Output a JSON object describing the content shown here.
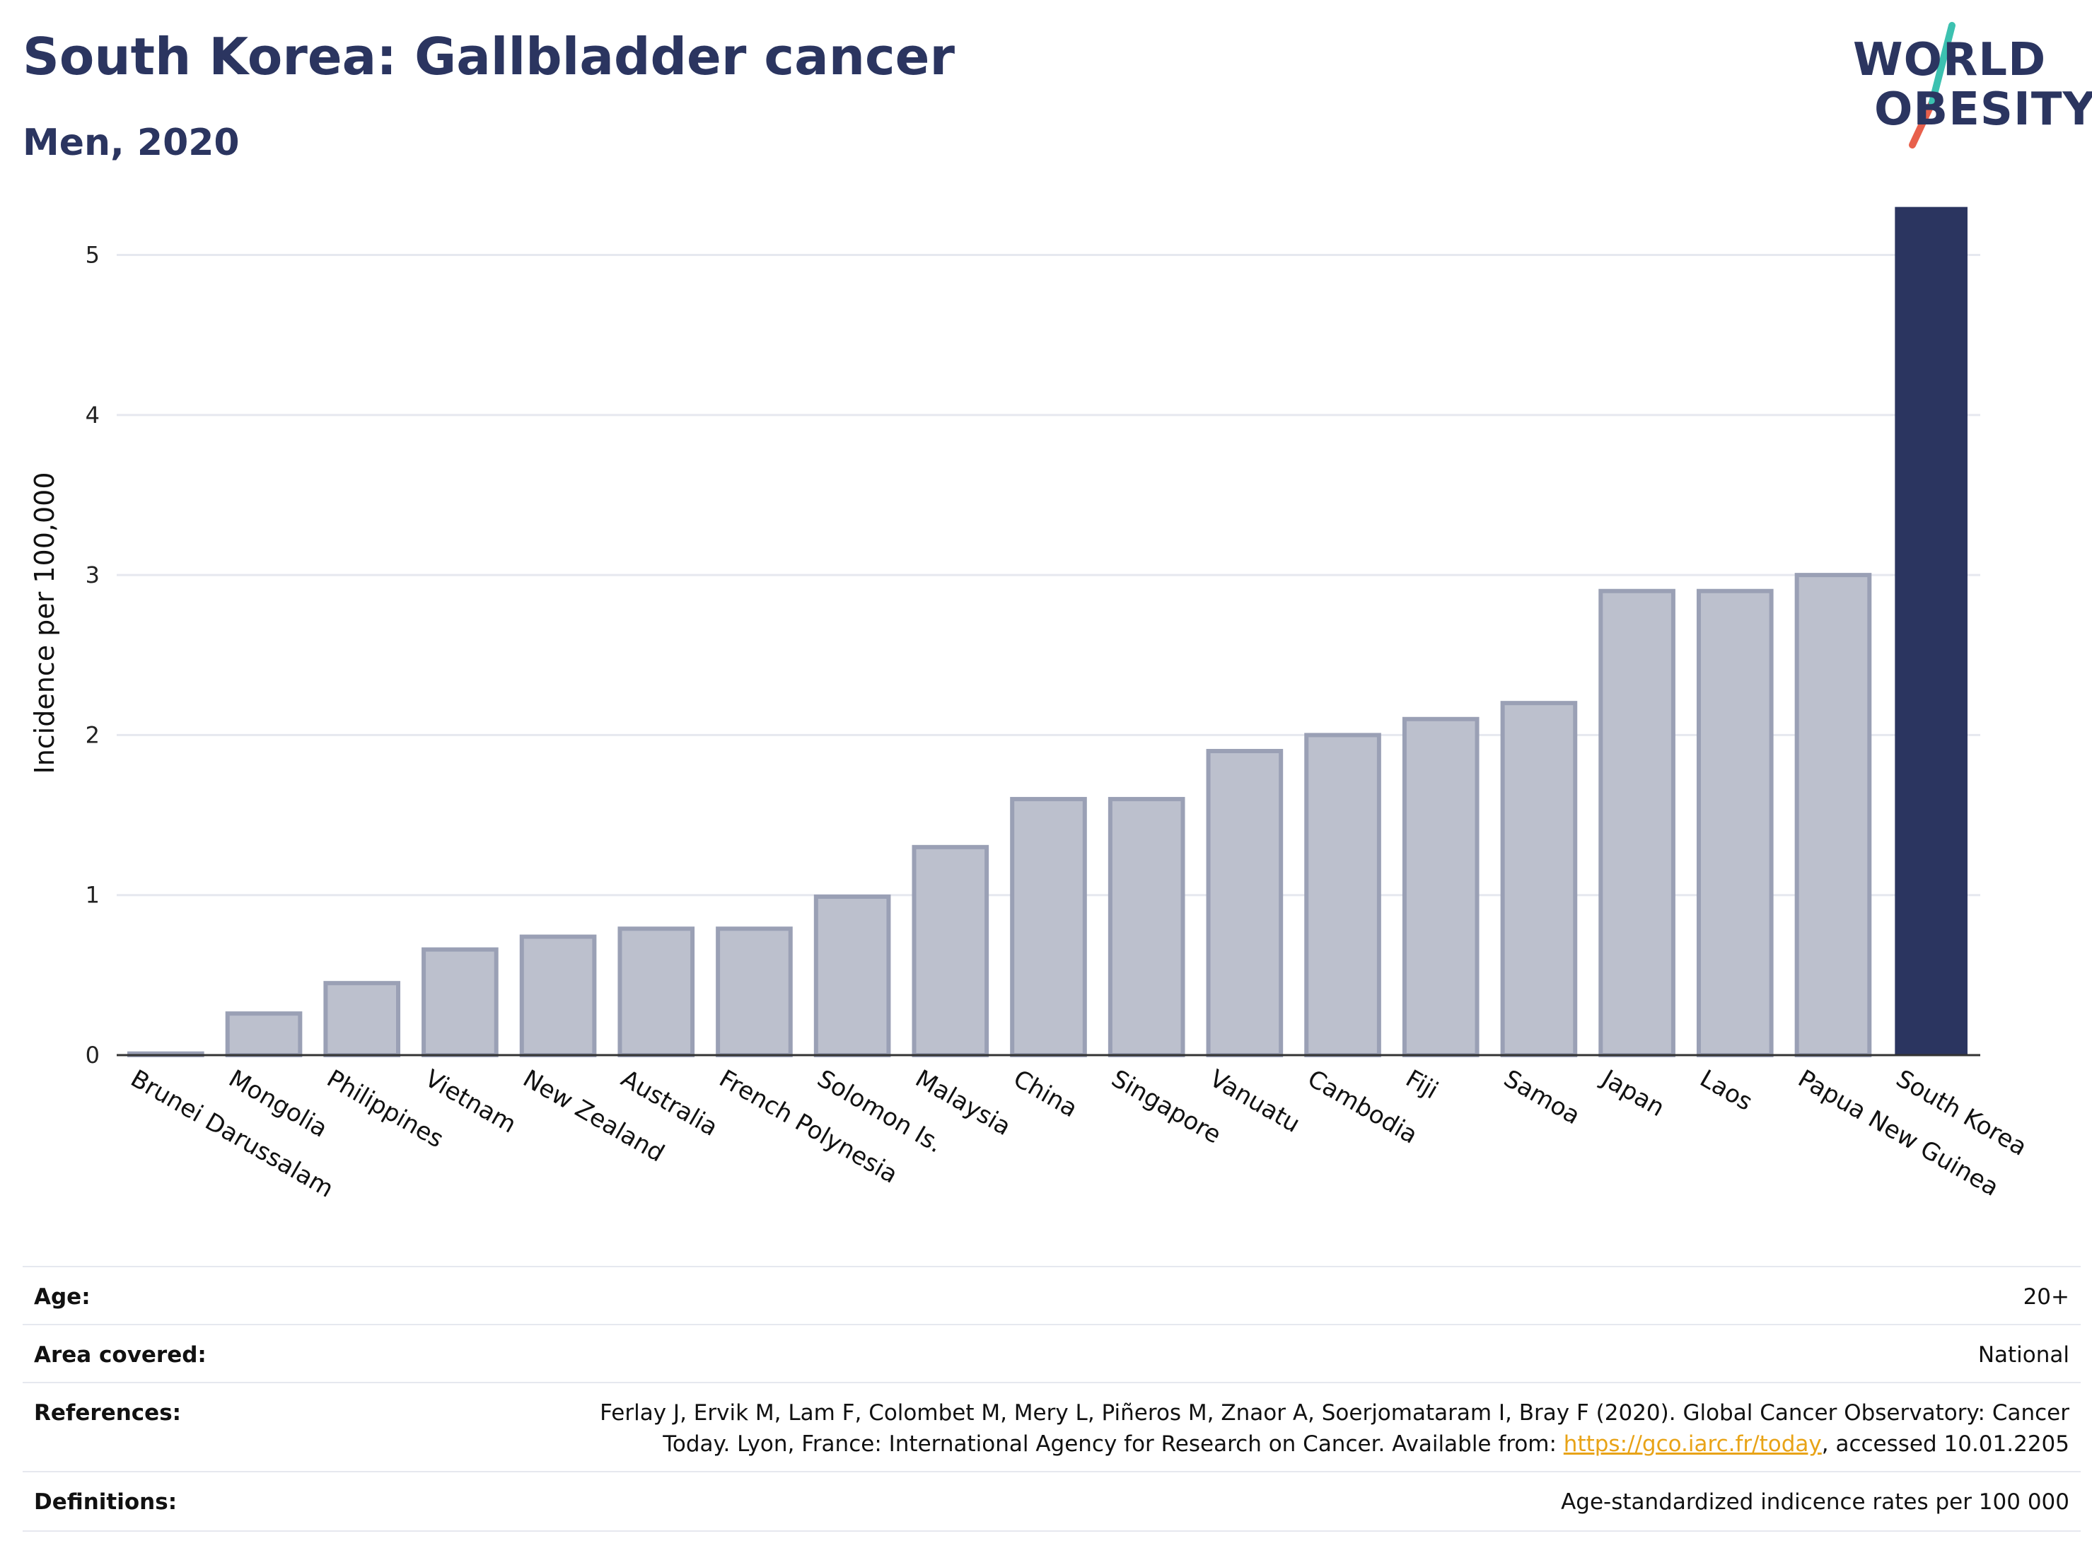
{
  "header": {
    "title": "South Korea: Gallbladder cancer",
    "subtitle": "Men, 2020"
  },
  "logo": {
    "line1": "WORLD",
    "line2": "OBESITY",
    "accent_teal": "#3cc1b0",
    "accent_coral": "#e8604c"
  },
  "colors": {
    "bar_default": "#bcc0cd",
    "bar_default_border": "#9aa0b5",
    "bar_highlight": "#2b3560",
    "grid": "#e6e8ef",
    "text_dark": "#2b3560"
  },
  "chart_data": {
    "type": "bar",
    "title": "South Korea: Gallbladder cancer",
    "subtitle": "Men, 2020",
    "xlabel": "",
    "ylabel": "Incidence per 100,000",
    "ylim": [
      0,
      5.4
    ],
    "yticks": [
      "0",
      "1",
      "2",
      "3",
      "4",
      "5"
    ],
    "grid": true,
    "highlight": "South Korea",
    "categories": [
      "Brunei Darussalam",
      "Mongolia",
      "Philippines",
      "Vietnam",
      "New Zealand",
      "Australia",
      "French Polynesia",
      "Solomon Is.",
      "Malaysia",
      "China",
      "Singapore",
      "Vanuatu",
      "Cambodia",
      "Fiji",
      "Samoa",
      "Japan",
      "Laos",
      "Papua New Guinea",
      "South Korea"
    ],
    "values": [
      0.01,
      0.26,
      0.45,
      0.66,
      0.74,
      0.79,
      0.79,
      0.99,
      1.3,
      1.6,
      1.6,
      1.9,
      2.0,
      2.1,
      2.2,
      2.9,
      2.9,
      3.0,
      5.3
    ]
  },
  "meta": {
    "age_label": "Age:",
    "age_value": "20+",
    "area_label": "Area covered:",
    "area_value": "National",
    "references_label": "References:",
    "references_line1": "Ferlay J, Ervik M, Lam F, Colombet M, Mery L, Piñeros M, Znaor A, Soerjomataram I, Bray F (2020). Global Cancer Observatory: Cancer",
    "references_line2_pre": "Today. Lyon, France: International Agency for Research on Cancer. Available from: ",
    "references_link": "https://gco.iarc.fr/today",
    "references_line2_post": ", accessed 10.01.2205",
    "definitions_label": "Definitions:",
    "definitions_value": "Age-standardized indicence rates per 100 000"
  }
}
